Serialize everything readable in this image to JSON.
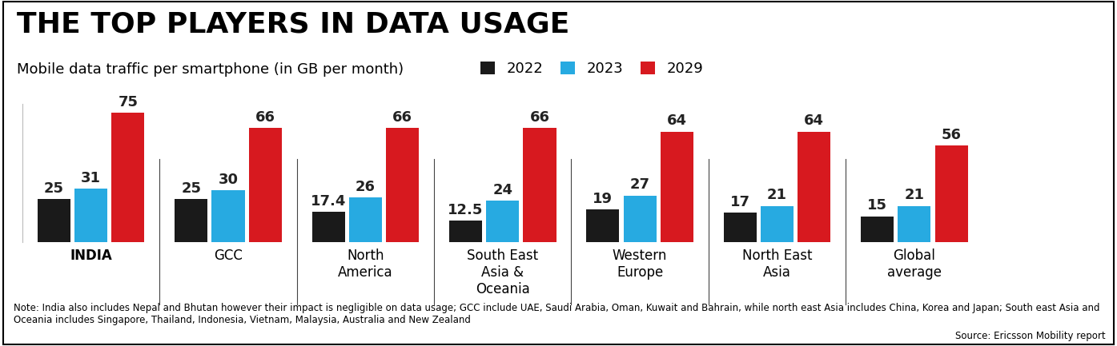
{
  "chart_data": {
    "type": "bar",
    "title": "THE TOP PLAYERS IN DATA USAGE",
    "subtitle": "Mobile data traffic per smartphone (in GB per month)",
    "categories": [
      "INDIA",
      "GCC",
      "North America",
      "South East Asia & Oceania",
      "Western Europe",
      "North East Asia",
      "Global average"
    ],
    "series": [
      {
        "name": "2022",
        "color": "#1a1a1a",
        "values": [
          25,
          25,
          17.4,
          12.5,
          19,
          17,
          15
        ]
      },
      {
        "name": "2023",
        "color": "#27aae1",
        "values": [
          31,
          30,
          26,
          24,
          27,
          21,
          21
        ]
      },
      {
        "name": "2029",
        "color": "#d7191f",
        "values": [
          75,
          66,
          66,
          66,
          64,
          64,
          56
        ]
      }
    ],
    "ylim": [
      0,
      80
    ],
    "data_labels": true,
    "tick_labels": "x",
    "legend": "upper center",
    "note": "Note: India also includes Nepal and Bhutan however their impact is negligible on data usage; GCC include UAE, Saudi Arabia, Oman, Kuwait and Bahrain, while north east Asia includes China, Korea and Japan; South east Asia and Oceania includes Singapore, Thailand, Indonesia, Vietnam, Malaysia, Australia and New Zealand",
    "source": "Source: Ericsson Mobility report"
  }
}
